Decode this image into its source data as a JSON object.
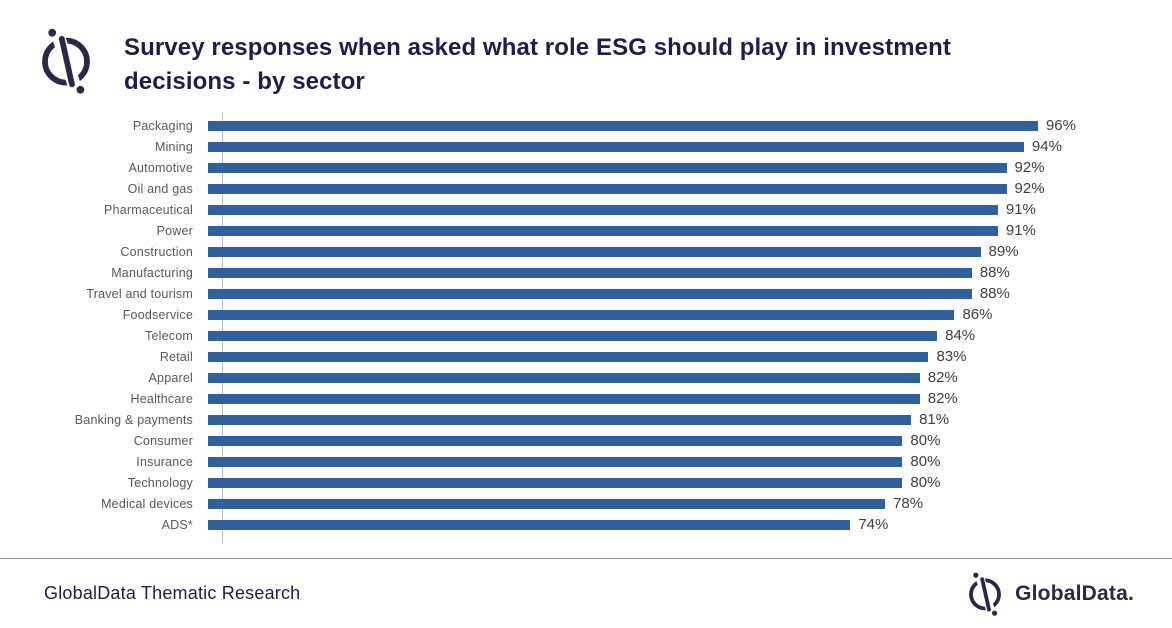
{
  "header": {
    "title": "Survey responses when asked what role ESG should play in investment decisions - by sector",
    "logo_icon": "globaldata-icon"
  },
  "chart_data": {
    "type": "bar",
    "orientation": "horizontal",
    "title": "Survey responses when asked what role ESG should play in investment decisions - by sector",
    "categories": [
      "Packaging",
      "Mining",
      "Automotive",
      "Oil and gas",
      "Pharmaceutical",
      "Power",
      "Construction",
      "Manufacturing",
      "Travel and tourism",
      "Foodservice",
      "Telecom",
      "Retail",
      "Apparel",
      "Healthcare",
      "Banking & payments",
      "Consumer",
      "Insurance",
      "Technology",
      "Medical devices",
      "ADS*"
    ],
    "values": [
      96,
      94,
      92,
      92,
      91,
      91,
      89,
      88,
      88,
      86,
      84,
      83,
      82,
      82,
      81,
      80,
      80,
      80,
      78,
      74
    ],
    "value_label_suffix": "%",
    "xlim": [
      0,
      100
    ],
    "grid": false,
    "legend": false,
    "bar_color": "#31609f",
    "category_label_color": "#595959",
    "value_label_color": "#404040",
    "axis_line_color": "#bfbfbf"
  },
  "footer": {
    "left_text": "GlobalData Thematic Research",
    "brand_text": "GlobalData.",
    "brand_icon": "globaldata-icon"
  },
  "colors": {
    "title_navy": "#221c4e",
    "brand_navy": "#2b2746",
    "divider_gray": "#8c8c8c",
    "background": "#ffffff"
  }
}
